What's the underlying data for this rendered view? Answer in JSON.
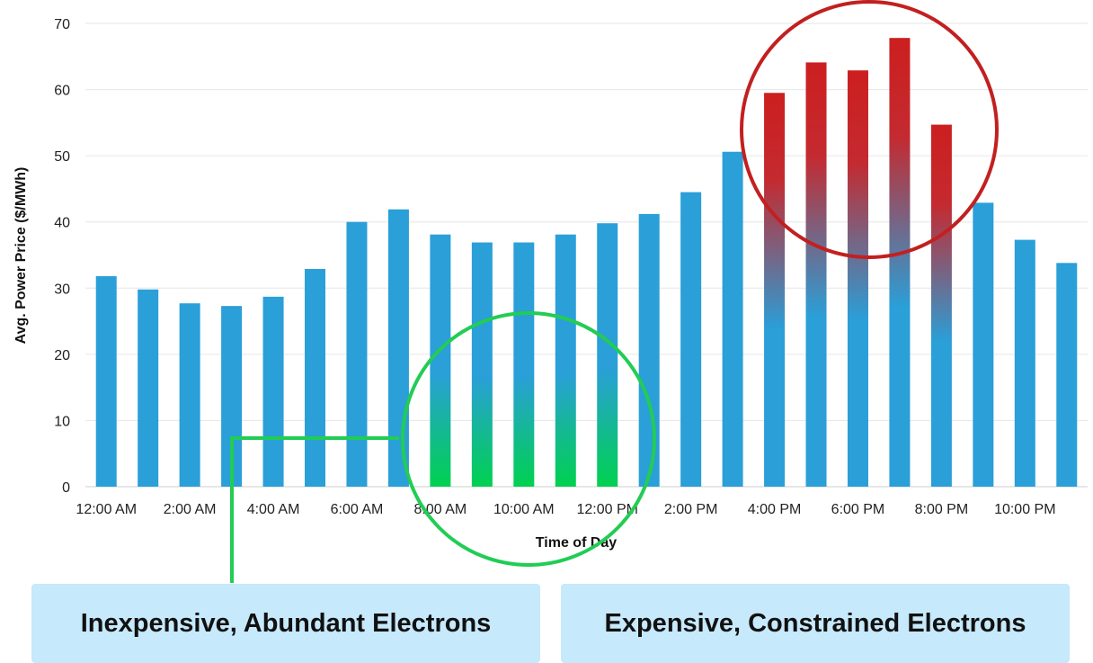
{
  "chart_data": {
    "type": "bar",
    "categories": [
      "12:00 AM",
      "1:00 AM",
      "2:00 AM",
      "3:00 AM",
      "4:00 AM",
      "5:00 AM",
      "6:00 AM",
      "7:00 AM",
      "8:00 AM",
      "9:00 AM",
      "10:00 AM",
      "11:00 AM",
      "12:00 PM",
      "1:00 PM",
      "2:00 PM",
      "3:00 PM",
      "4:00 PM",
      "5:00 PM",
      "6:00 PM",
      "7:00 PM",
      "8:00 PM",
      "9:00 PM",
      "10:00 PM",
      "11:00 PM"
    ],
    "tick_labels": [
      "12:00 AM",
      "2:00 AM",
      "4:00 AM",
      "6:00 AM",
      "8:00 AM",
      "10:00 AM",
      "12:00 PM",
      "2:00 PM",
      "4:00 PM",
      "6:00 PM",
      "8:00 PM",
      "10:00 PM"
    ],
    "values": [
      31.8,
      29.8,
      27.7,
      27.3,
      28.7,
      32.9,
      40.0,
      41.9,
      38.1,
      36.9,
      36.9,
      38.1,
      39.8,
      41.2,
      44.5,
      50.6,
      59.5,
      64.1,
      62.9,
      67.8,
      54.7,
      42.9,
      37.3,
      33.8
    ],
    "xlabel": "Time of Day",
    "ylabel": "Avg. Power Price ($/MWh)",
    "ylim": [
      0,
      70
    ],
    "yticks": [
      0,
      10,
      20,
      30,
      40,
      50,
      60,
      70
    ],
    "grid": true,
    "colors": {
      "bar": "#2a9fd8",
      "cheap": "#00d14f",
      "expensive": "#cc1f1f",
      "cheap_ring": "#22cc55",
      "expensive_ring": "#c22020"
    },
    "highlights": {
      "cheap": [
        "8:00 AM",
        "9:00 AM",
        "10:00 AM",
        "11:00 AM",
        "12:00 PM"
      ],
      "expensive": [
        "4:00 PM",
        "5:00 PM",
        "6:00 PM",
        "7:00 PM",
        "8:00 PM"
      ]
    }
  },
  "callouts": {
    "left": "Inexpensive, Abundant Electrons",
    "right": "Expensive, Constrained Electrons"
  }
}
